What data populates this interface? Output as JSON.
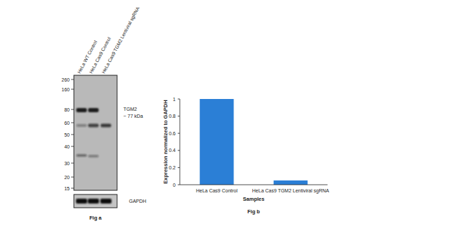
{
  "chart_data": {
    "type": "bar",
    "title": "Fig b",
    "categories": [
      "HeLa Cas9 Control",
      "HeLa Cas9 TGM2 Lentiviral sgRNA"
    ],
    "values": [
      1,
      0.05
    ],
    "color": "#2b7fd6",
    "x_label": "Samples",
    "y_label": "Expression normalized to GAPDH",
    "ylim": [
      0,
      1
    ],
    "yticks": [
      0,
      0.2,
      0.4,
      0.6,
      0.8,
      1
    ],
    "grid": false
  },
  "blot": {
    "title": "Fig a",
    "lanes": [
      "HeLa WT Control",
      "HeLa Cas9 Control",
      "HeLa Cas9 TGM2 Lentiviral sgRNA"
    ],
    "markers": [
      260,
      160,
      80,
      60,
      50,
      40,
      30,
      20,
      15
    ],
    "target": "TGM2",
    "target_size": "~ 77 kDa",
    "loading_control": "GAPDH"
  }
}
